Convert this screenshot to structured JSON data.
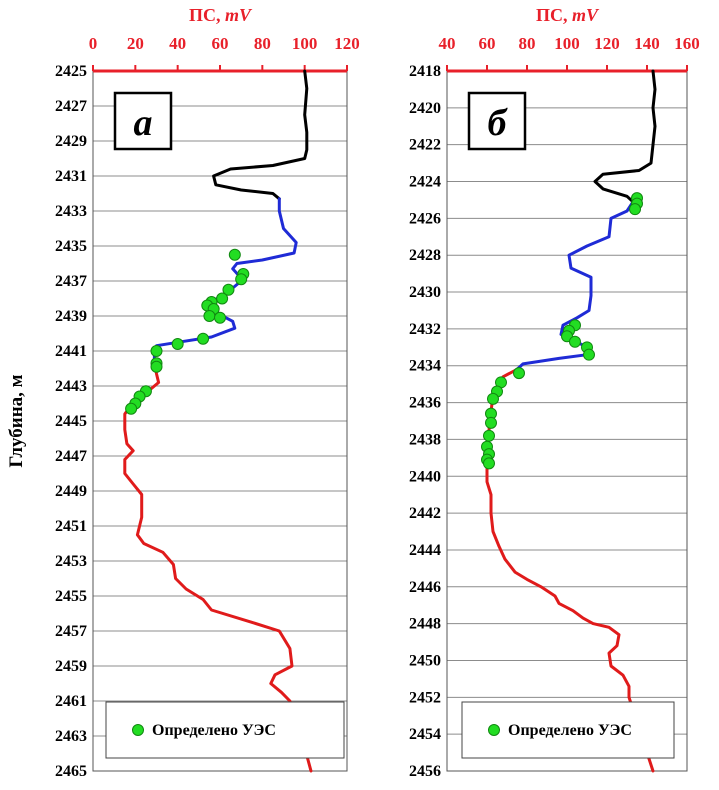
{
  "y_axis_label": "Глубина, м",
  "colors": {
    "axis_red": "#e8202a",
    "grid": "#8c8c8c",
    "series_black": "#000000",
    "series_blue": "#1f2bd6",
    "series_red": "#e01b1b",
    "marker_green": "#22dd22"
  },
  "chart_data": [
    {
      "type": "line",
      "panel_label": "а",
      "x_title": "ПС, ",
      "x_title_unit": "mV",
      "xlim": [
        0,
        120
      ],
      "x_ticks": [
        0,
        20,
        40,
        60,
        80,
        100,
        120
      ],
      "ylim": [
        2425,
        2465
      ],
      "y_ticks": [
        2425,
        2427,
        2429,
        2431,
        2433,
        2435,
        2437,
        2439,
        2441,
        2443,
        2445,
        2447,
        2449,
        2451,
        2453,
        2455,
        2457,
        2459,
        2461,
        2463,
        2465
      ],
      "legend": "Определено УЭС",
      "series": [
        {
          "color": "black",
          "points": [
            [
              100,
              2425
            ],
            [
              101,
              2426
            ],
            [
              100,
              2427.5
            ],
            [
              101,
              2428.5
            ],
            [
              101,
              2429.5
            ],
            [
              100,
              2430
            ],
            [
              85,
              2430.4
            ],
            [
              65,
              2430.6
            ],
            [
              57,
              2431
            ],
            [
              58,
              2431.5
            ],
            [
              70,
              2431.8
            ],
            [
              85,
              2432
            ],
            [
              88,
              2432.3
            ]
          ]
        },
        {
          "color": "blue",
          "points": [
            [
              88,
              2432.3
            ],
            [
              88,
              2433
            ],
            [
              90,
              2434
            ],
            [
              96,
              2434.8
            ],
            [
              95,
              2435.4
            ],
            [
              80,
              2435.8
            ],
            [
              68,
              2436
            ],
            [
              66,
              2436.3
            ],
            [
              69,
              2436.7
            ],
            [
              70,
              2437
            ],
            [
              64,
              2437.6
            ],
            [
              56,
              2438.2
            ],
            [
              58,
              2438.8
            ],
            [
              66,
              2439.3
            ],
            [
              67,
              2439.7
            ],
            [
              56,
              2440.2
            ],
            [
              40,
              2440.5
            ],
            [
              30,
              2440.7
            ],
            [
              29,
              2441.2
            ],
            [
              29,
              2441.6
            ]
          ]
        },
        {
          "color": "red",
          "points": [
            [
              29,
              2441.6
            ],
            [
              30,
              2442.3
            ],
            [
              31,
              2442.8
            ],
            [
              27,
              2443.2
            ],
            [
              22,
              2443.6
            ],
            [
              18,
              2444.1
            ],
            [
              15,
              2444.6
            ],
            [
              15,
              2445.5
            ],
            [
              16,
              2446.3
            ],
            [
              19,
              2446.7
            ],
            [
              15,
              2447.2
            ],
            [
              15,
              2448
            ],
            [
              19,
              2448.6
            ],
            [
              23,
              2449.2
            ],
            [
              23,
              2450.5
            ],
            [
              21,
              2451.5
            ],
            [
              24,
              2452
            ],
            [
              33,
              2452.5
            ],
            [
              38,
              2453.2
            ],
            [
              39,
              2454
            ],
            [
              44,
              2454.6
            ],
            [
              52,
              2455.2
            ],
            [
              56,
              2455.8
            ],
            [
              75,
              2456.5
            ],
            [
              88,
              2457
            ],
            [
              93,
              2458
            ],
            [
              94,
              2459
            ],
            [
              86,
              2459.5
            ],
            [
              84,
              2460
            ],
            [
              89,
              2460.5
            ],
            [
              93,
              2461
            ],
            [
              96,
              2462
            ],
            [
              99,
              2463.2
            ],
            [
              103,
              2465
            ]
          ]
        }
      ],
      "markers": [
        [
          67,
          2435.5
        ],
        [
          71,
          2436.6
        ],
        [
          70,
          2436.9
        ],
        [
          64,
          2437.5
        ],
        [
          61,
          2438
        ],
        [
          56,
          2438.2
        ],
        [
          54,
          2438.4
        ],
        [
          57,
          2438.6
        ],
        [
          55,
          2439
        ],
        [
          60,
          2439.1
        ],
        [
          52,
          2440.3
        ],
        [
          40,
          2440.6
        ],
        [
          30,
          2441
        ],
        [
          30,
          2441.7
        ],
        [
          30,
          2441.9
        ],
        [
          25,
          2443.3
        ],
        [
          22,
          2443.6
        ],
        [
          20,
          2444
        ],
        [
          18,
          2444.3
        ]
      ]
    },
    {
      "type": "line",
      "panel_label": "б",
      "x_title": "ПС, ",
      "x_title_unit": "mV",
      "xlim": [
        40,
        160
      ],
      "x_ticks": [
        40,
        60,
        80,
        100,
        120,
        140,
        160
      ],
      "ylim": [
        2418,
        2456
      ],
      "y_ticks": [
        2418,
        2420,
        2422,
        2424,
        2426,
        2428,
        2430,
        2432,
        2434,
        2436,
        2438,
        2440,
        2442,
        2444,
        2446,
        2448,
        2450,
        2452,
        2454,
        2456
      ],
      "legend": "Определено УЭС",
      "series": [
        {
          "color": "black",
          "points": [
            [
              143,
              2418
            ],
            [
              144,
              2419
            ],
            [
              143,
              2420
            ],
            [
              144,
              2421
            ],
            [
              143,
              2422
            ],
            [
              142,
              2423
            ],
            [
              136,
              2423.4
            ],
            [
              118,
              2423.6
            ],
            [
              114,
              2424
            ],
            [
              118,
              2424.4
            ],
            [
              130,
              2424.8
            ],
            [
              133,
              2425.1
            ]
          ]
        },
        {
          "color": "blue",
          "points": [
            [
              133,
              2425.1
            ],
            [
              130,
              2425.6
            ],
            [
              122,
              2426
            ],
            [
              121,
              2427
            ],
            [
              110,
              2427.5
            ],
            [
              101,
              2428
            ],
            [
              102,
              2428.7
            ],
            [
              112,
              2429.2
            ],
            [
              112,
              2430.2
            ],
            [
              111,
              2431
            ],
            [
              105,
              2431.4
            ],
            [
              98,
              2431.8
            ],
            [
              97,
              2432.3
            ],
            [
              103,
              2432.6
            ],
            [
              110,
              2433
            ],
            [
              110,
              2433.4
            ],
            [
              96,
              2433.6
            ],
            [
              78,
              2433.9
            ],
            [
              75,
              2434.2
            ]
          ]
        },
        {
          "color": "red",
          "points": [
            [
              75,
              2434.2
            ],
            [
              68,
              2434.6
            ],
            [
              66,
              2435
            ],
            [
              63,
              2435.6
            ],
            [
              62,
              2436.5
            ],
            [
              61,
              2437.5
            ],
            [
              60,
              2438.5
            ],
            [
              60,
              2439.5
            ],
            [
              60,
              2440.3
            ],
            [
              62,
              2441
            ],
            [
              62,
              2442
            ],
            [
              63,
              2443
            ],
            [
              66,
              2443.8
            ],
            [
              69,
              2444.5
            ],
            [
              74,
              2445.2
            ],
            [
              80,
              2445.6
            ],
            [
              87,
              2446
            ],
            [
              94,
              2446.5
            ],
            [
              96,
              2446.9
            ],
            [
              103,
              2447.3
            ],
            [
              108,
              2447.7
            ],
            [
              113,
              2448
            ],
            [
              121,
              2448.2
            ],
            [
              126,
              2448.6
            ],
            [
              125,
              2449.2
            ],
            [
              121,
              2449.6
            ],
            [
              122,
              2450.3
            ],
            [
              128,
              2450.8
            ],
            [
              131,
              2451.4
            ],
            [
              131,
              2452
            ],
            [
              134,
              2453
            ],
            [
              137,
              2454
            ],
            [
              140,
              2455
            ],
            [
              143,
              2456
            ]
          ]
        }
      ],
      "markers": [
        [
          135,
          2424.9
        ],
        [
          135,
          2425.2
        ],
        [
          134,
          2425.5
        ],
        [
          104,
          2431.8
        ],
        [
          101,
          2432.1
        ],
        [
          100,
          2432.4
        ],
        [
          104,
          2432.7
        ],
        [
          110,
          2433
        ],
        [
          111,
          2433.4
        ],
        [
          76,
          2434.4
        ],
        [
          67,
          2434.9
        ],
        [
          65,
          2435.4
        ],
        [
          63,
          2435.8
        ],
        [
          62,
          2436.6
        ],
        [
          62,
          2437.1
        ],
        [
          61,
          2437.8
        ],
        [
          60,
          2438.4
        ],
        [
          61,
          2438.8
        ],
        [
          60,
          2439.1
        ],
        [
          61,
          2439.3
        ]
      ]
    }
  ]
}
